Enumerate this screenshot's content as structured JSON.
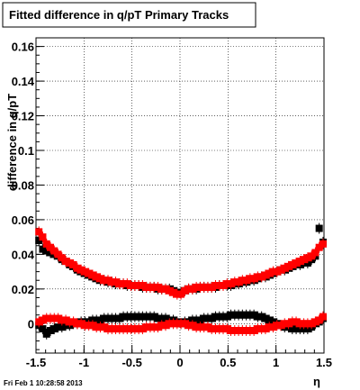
{
  "chart_data": {
    "type": "scatter",
    "title": "Fitted difference in q/pT  Primary Tracks",
    "xlabel": "η",
    "ylabel": "difference in q/pT",
    "xlim": [
      -1.5,
      1.5
    ],
    "ylim": [
      -0.017,
      0.165
    ],
    "grid": true,
    "legend": "none",
    "x_ticks": [
      -1.5,
      -1,
      -0.5,
      0,
      0.5,
      1,
      1.5
    ],
    "x_tick_labels": [
      "-1.5",
      "-1",
      "-0.5",
      "0",
      "0.5",
      "1",
      "1.5"
    ],
    "y_ticks": [
      0,
      0.02,
      0.04,
      0.06,
      0.08,
      0.1,
      0.12,
      0.14,
      0.16
    ],
    "y_tick_labels": [
      "0",
      "0.02",
      "0.04",
      "0.06",
      "0.08",
      "0.1",
      "0.12",
      "0.14",
      "0.16"
    ],
    "series": [
      {
        "color": "#000000",
        "points": [
          [
            -1.47,
            0.048
          ],
          [
            -1.43,
            0.043
          ],
          [
            -1.39,
            0.042
          ],
          [
            -1.35,
            0.041
          ],
          [
            -1.31,
            0.04
          ],
          [
            -1.27,
            0.039
          ],
          [
            -1.23,
            0.037
          ],
          [
            -1.19,
            0.036
          ],
          [
            -1.15,
            0.034
          ],
          [
            -1.11,
            0.033
          ],
          [
            -1.07,
            0.031
          ],
          [
            -1.03,
            0.03
          ],
          [
            -0.99,
            0.029
          ],
          [
            -0.95,
            0.028
          ],
          [
            -0.91,
            0.027
          ],
          [
            -0.87,
            0.026
          ],
          [
            -0.83,
            0.025
          ],
          [
            -0.79,
            0.025
          ],
          [
            -0.75,
            0.024
          ],
          [
            -0.71,
            0.024
          ],
          [
            -0.67,
            0.023
          ],
          [
            -0.63,
            0.023
          ],
          [
            -0.59,
            0.023
          ],
          [
            -0.55,
            0.022
          ],
          [
            -0.51,
            0.022
          ],
          [
            -0.47,
            0.022
          ],
          [
            -0.43,
            0.022
          ],
          [
            -0.39,
            0.021
          ],
          [
            -0.35,
            0.021
          ],
          [
            -0.31,
            0.021
          ],
          [
            -0.27,
            0.021
          ],
          [
            -0.23,
            0.02
          ],
          [
            -0.19,
            0.02
          ],
          [
            -0.15,
            0.02
          ],
          [
            -0.11,
            0.02
          ],
          [
            -0.07,
            0.019
          ],
          [
            -0.03,
            0.018
          ],
          [
            0.01,
            0.018
          ],
          [
            0.05,
            0.019
          ],
          [
            0.09,
            0.02
          ],
          [
            0.13,
            0.02
          ],
          [
            0.17,
            0.02
          ],
          [
            0.21,
            0.021
          ],
          [
            0.25,
            0.021
          ],
          [
            0.29,
            0.021
          ],
          [
            0.33,
            0.021
          ],
          [
            0.37,
            0.021
          ],
          [
            0.41,
            0.022
          ],
          [
            0.45,
            0.022
          ],
          [
            0.49,
            0.022
          ],
          [
            0.53,
            0.022
          ],
          [
            0.57,
            0.023
          ],
          [
            0.61,
            0.023
          ],
          [
            0.65,
            0.024
          ],
          [
            0.69,
            0.024
          ],
          [
            0.73,
            0.025
          ],
          [
            0.77,
            0.025
          ],
          [
            0.81,
            0.026
          ],
          [
            0.85,
            0.027
          ],
          [
            0.89,
            0.027
          ],
          [
            0.93,
            0.028
          ],
          [
            0.97,
            0.029
          ],
          [
            1.01,
            0.03
          ],
          [
            1.05,
            0.031
          ],
          [
            1.09,
            0.031
          ],
          [
            1.13,
            0.032
          ],
          [
            1.17,
            0.033
          ],
          [
            1.21,
            0.034
          ],
          [
            1.25,
            0.034
          ],
          [
            1.29,
            0.035
          ],
          [
            1.33,
            0.035
          ],
          [
            1.37,
            0.037
          ],
          [
            1.41,
            0.039
          ],
          [
            1.45,
            0.055
          ],
          [
            1.49,
            0.047
          ]
        ]
      },
      {
        "color": "#ff0000",
        "points": [
          [
            -1.47,
            0.053
          ],
          [
            -1.43,
            0.05
          ],
          [
            -1.39,
            0.046
          ],
          [
            -1.35,
            0.044
          ],
          [
            -1.31,
            0.042
          ],
          [
            -1.27,
            0.04
          ],
          [
            -1.23,
            0.038
          ],
          [
            -1.19,
            0.036
          ],
          [
            -1.15,
            0.035
          ],
          [
            -1.11,
            0.034
          ],
          [
            -1.07,
            0.032
          ],
          [
            -1.03,
            0.031
          ],
          [
            -0.99,
            0.03
          ],
          [
            -0.95,
            0.029
          ],
          [
            -0.91,
            0.028
          ],
          [
            -0.87,
            0.027
          ],
          [
            -0.83,
            0.026
          ],
          [
            -0.79,
            0.025
          ],
          [
            -0.75,
            0.025
          ],
          [
            -0.71,
            0.024
          ],
          [
            -0.67,
            0.024
          ],
          [
            -0.63,
            0.023
          ],
          [
            -0.59,
            0.023
          ],
          [
            -0.55,
            0.023
          ],
          [
            -0.51,
            0.022
          ],
          [
            -0.47,
            0.022
          ],
          [
            -0.43,
            0.022
          ],
          [
            -0.39,
            0.022
          ],
          [
            -0.35,
            0.021
          ],
          [
            -0.31,
            0.021
          ],
          [
            -0.27,
            0.021
          ],
          [
            -0.23,
            0.021
          ],
          [
            -0.19,
            0.02
          ],
          [
            -0.15,
            0.02
          ],
          [
            -0.11,
            0.019
          ],
          [
            -0.07,
            0.018
          ],
          [
            -0.03,
            0.017
          ],
          [
            0.01,
            0.017
          ],
          [
            0.05,
            0.019
          ],
          [
            0.09,
            0.02
          ],
          [
            0.13,
            0.02
          ],
          [
            0.17,
            0.021
          ],
          [
            0.21,
            0.021
          ],
          [
            0.25,
            0.021
          ],
          [
            0.29,
            0.021
          ],
          [
            0.33,
            0.021
          ],
          [
            0.37,
            0.022
          ],
          [
            0.41,
            0.022
          ],
          [
            0.45,
            0.022
          ],
          [
            0.49,
            0.023
          ],
          [
            0.53,
            0.023
          ],
          [
            0.57,
            0.024
          ],
          [
            0.61,
            0.024
          ],
          [
            0.65,
            0.025
          ],
          [
            0.69,
            0.025
          ],
          [
            0.73,
            0.026
          ],
          [
            0.77,
            0.026
          ],
          [
            0.81,
            0.027
          ],
          [
            0.85,
            0.027
          ],
          [
            0.89,
            0.028
          ],
          [
            0.93,
            0.029
          ],
          [
            0.97,
            0.03
          ],
          [
            1.01,
            0.03
          ],
          [
            1.05,
            0.031
          ],
          [
            1.09,
            0.032
          ],
          [
            1.13,
            0.033
          ],
          [
            1.17,
            0.034
          ],
          [
            1.21,
            0.035
          ],
          [
            1.25,
            0.036
          ],
          [
            1.29,
            0.037
          ],
          [
            1.33,
            0.038
          ],
          [
            1.37,
            0.039
          ],
          [
            1.41,
            0.041
          ],
          [
            1.45,
            0.044
          ],
          [
            1.49,
            0.046
          ]
        ]
      },
      {
        "color": "#000000",
        "points": [
          [
            -1.47,
            -0.001
          ],
          [
            -1.43,
            -0.003
          ],
          [
            -1.39,
            -0.006
          ],
          [
            -1.35,
            -0.004
          ],
          [
            -1.31,
            -0.003
          ],
          [
            -1.27,
            -0.002
          ],
          [
            -1.23,
            -0.002
          ],
          [
            -1.19,
            -0.001
          ],
          [
            -1.15,
            -0.001
          ],
          [
            -1.11,
            0.0
          ],
          [
            -1.07,
            0.0
          ],
          [
            -1.03,
            0.001
          ],
          [
            -0.99,
            0.001
          ],
          [
            -0.95,
            0.001
          ],
          [
            -0.91,
            0.002
          ],
          [
            -0.87,
            0.002
          ],
          [
            -0.83,
            0.002
          ],
          [
            -0.79,
            0.003
          ],
          [
            -0.75,
            0.003
          ],
          [
            -0.71,
            0.003
          ],
          [
            -0.67,
            0.003
          ],
          [
            -0.63,
            0.003
          ],
          [
            -0.59,
            0.004
          ],
          [
            -0.55,
            0.004
          ],
          [
            -0.51,
            0.004
          ],
          [
            -0.47,
            0.004
          ],
          [
            -0.43,
            0.004
          ],
          [
            -0.39,
            0.004
          ],
          [
            -0.35,
            0.004
          ],
          [
            -0.31,
            0.004
          ],
          [
            -0.27,
            0.004
          ],
          [
            -0.23,
            0.003
          ],
          [
            -0.19,
            0.003
          ],
          [
            -0.15,
            0.003
          ],
          [
            -0.11,
            0.002
          ],
          [
            -0.07,
            0.002
          ],
          [
            -0.03,
            0.001
          ],
          [
            0.01,
            0.0
          ],
          [
            0.05,
            0.001
          ],
          [
            0.09,
            0.001
          ],
          [
            0.13,
            0.002
          ],
          [
            0.17,
            0.002
          ],
          [
            0.21,
            0.002
          ],
          [
            0.25,
            0.003
          ],
          [
            0.29,
            0.003
          ],
          [
            0.33,
            0.003
          ],
          [
            0.37,
            0.004
          ],
          [
            0.41,
            0.004
          ],
          [
            0.45,
            0.004
          ],
          [
            0.49,
            0.004
          ],
          [
            0.53,
            0.005
          ],
          [
            0.57,
            0.005
          ],
          [
            0.61,
            0.005
          ],
          [
            0.65,
            0.005
          ],
          [
            0.69,
            0.005
          ],
          [
            0.73,
            0.005
          ],
          [
            0.77,
            0.005
          ],
          [
            0.81,
            0.004
          ],
          [
            0.85,
            0.004
          ],
          [
            0.89,
            0.003
          ],
          [
            0.93,
            0.002
          ],
          [
            0.97,
            0.001
          ],
          [
            1.01,
            0.0
          ],
          [
            1.05,
            -0.001
          ],
          [
            1.09,
            -0.002
          ],
          [
            1.13,
            -0.002
          ],
          [
            1.17,
            -0.003
          ],
          [
            1.21,
            -0.003
          ],
          [
            1.25,
            -0.003
          ],
          [
            1.29,
            -0.003
          ],
          [
            1.33,
            -0.003
          ],
          [
            1.37,
            -0.002
          ],
          [
            1.41,
            0.0
          ],
          [
            1.45,
            0.001
          ],
          [
            1.49,
            0.003
          ]
        ]
      },
      {
        "color": "#ff0000",
        "points": [
          [
            -1.47,
            0.001
          ],
          [
            -1.43,
            0.002
          ],
          [
            -1.39,
            0.003
          ],
          [
            -1.35,
            0.003
          ],
          [
            -1.31,
            0.003
          ],
          [
            -1.27,
            0.003
          ],
          [
            -1.23,
            0.002
          ],
          [
            -1.19,
            0.002
          ],
          [
            -1.15,
            0.001
          ],
          [
            -1.11,
            0.001
          ],
          [
            -1.07,
            0.0
          ],
          [
            -1.03,
            0.0
          ],
          [
            -0.99,
            -0.001
          ],
          [
            -0.95,
            -0.001
          ],
          [
            -0.91,
            -0.001
          ],
          [
            -0.87,
            -0.002
          ],
          [
            -0.83,
            -0.002
          ],
          [
            -0.79,
            -0.002
          ],
          [
            -0.75,
            -0.003
          ],
          [
            -0.71,
            -0.003
          ],
          [
            -0.67,
            -0.003
          ],
          [
            -0.63,
            -0.003
          ],
          [
            -0.59,
            -0.003
          ],
          [
            -0.55,
            -0.003
          ],
          [
            -0.51,
            -0.003
          ],
          [
            -0.47,
            -0.003
          ],
          [
            -0.43,
            -0.003
          ],
          [
            -0.39,
            -0.003
          ],
          [
            -0.35,
            -0.002
          ],
          [
            -0.31,
            -0.002
          ],
          [
            -0.27,
            -0.002
          ],
          [
            -0.23,
            -0.002
          ],
          [
            -0.19,
            -0.001
          ],
          [
            -0.15,
            -0.001
          ],
          [
            -0.11,
            0.0
          ],
          [
            -0.07,
            0.0
          ],
          [
            -0.03,
            0.0
          ],
          [
            0.01,
            0.0
          ],
          [
            0.05,
            0.0
          ],
          [
            0.09,
            -0.001
          ],
          [
            0.13,
            -0.001
          ],
          [
            0.17,
            -0.002
          ],
          [
            0.21,
            -0.002
          ],
          [
            0.25,
            -0.002
          ],
          [
            0.29,
            -0.002
          ],
          [
            0.33,
            -0.003
          ],
          [
            0.37,
            -0.003
          ],
          [
            0.41,
            -0.003
          ],
          [
            0.45,
            -0.003
          ],
          [
            0.49,
            -0.003
          ],
          [
            0.53,
            -0.004
          ],
          [
            0.57,
            -0.004
          ],
          [
            0.61,
            -0.004
          ],
          [
            0.65,
            -0.004
          ],
          [
            0.69,
            -0.004
          ],
          [
            0.73,
            -0.004
          ],
          [
            0.77,
            -0.004
          ],
          [
            0.81,
            -0.003
          ],
          [
            0.85,
            -0.003
          ],
          [
            0.89,
            -0.003
          ],
          [
            0.93,
            -0.002
          ],
          [
            0.97,
            -0.002
          ],
          [
            1.01,
            -0.001
          ],
          [
            1.05,
            -0.001
          ],
          [
            1.09,
            0.0
          ],
          [
            1.13,
            0.0
          ],
          [
            1.17,
            0.001
          ],
          [
            1.21,
            0.001
          ],
          [
            1.25,
            0.0
          ],
          [
            1.29,
            0.0
          ],
          [
            1.33,
            0.0
          ],
          [
            1.37,
            0.0
          ],
          [
            1.41,
            0.001
          ],
          [
            1.45,
            0.002
          ],
          [
            1.49,
            0.004
          ]
        ]
      }
    ]
  },
  "footer": "Fri Feb  1 10:28:58 2013"
}
